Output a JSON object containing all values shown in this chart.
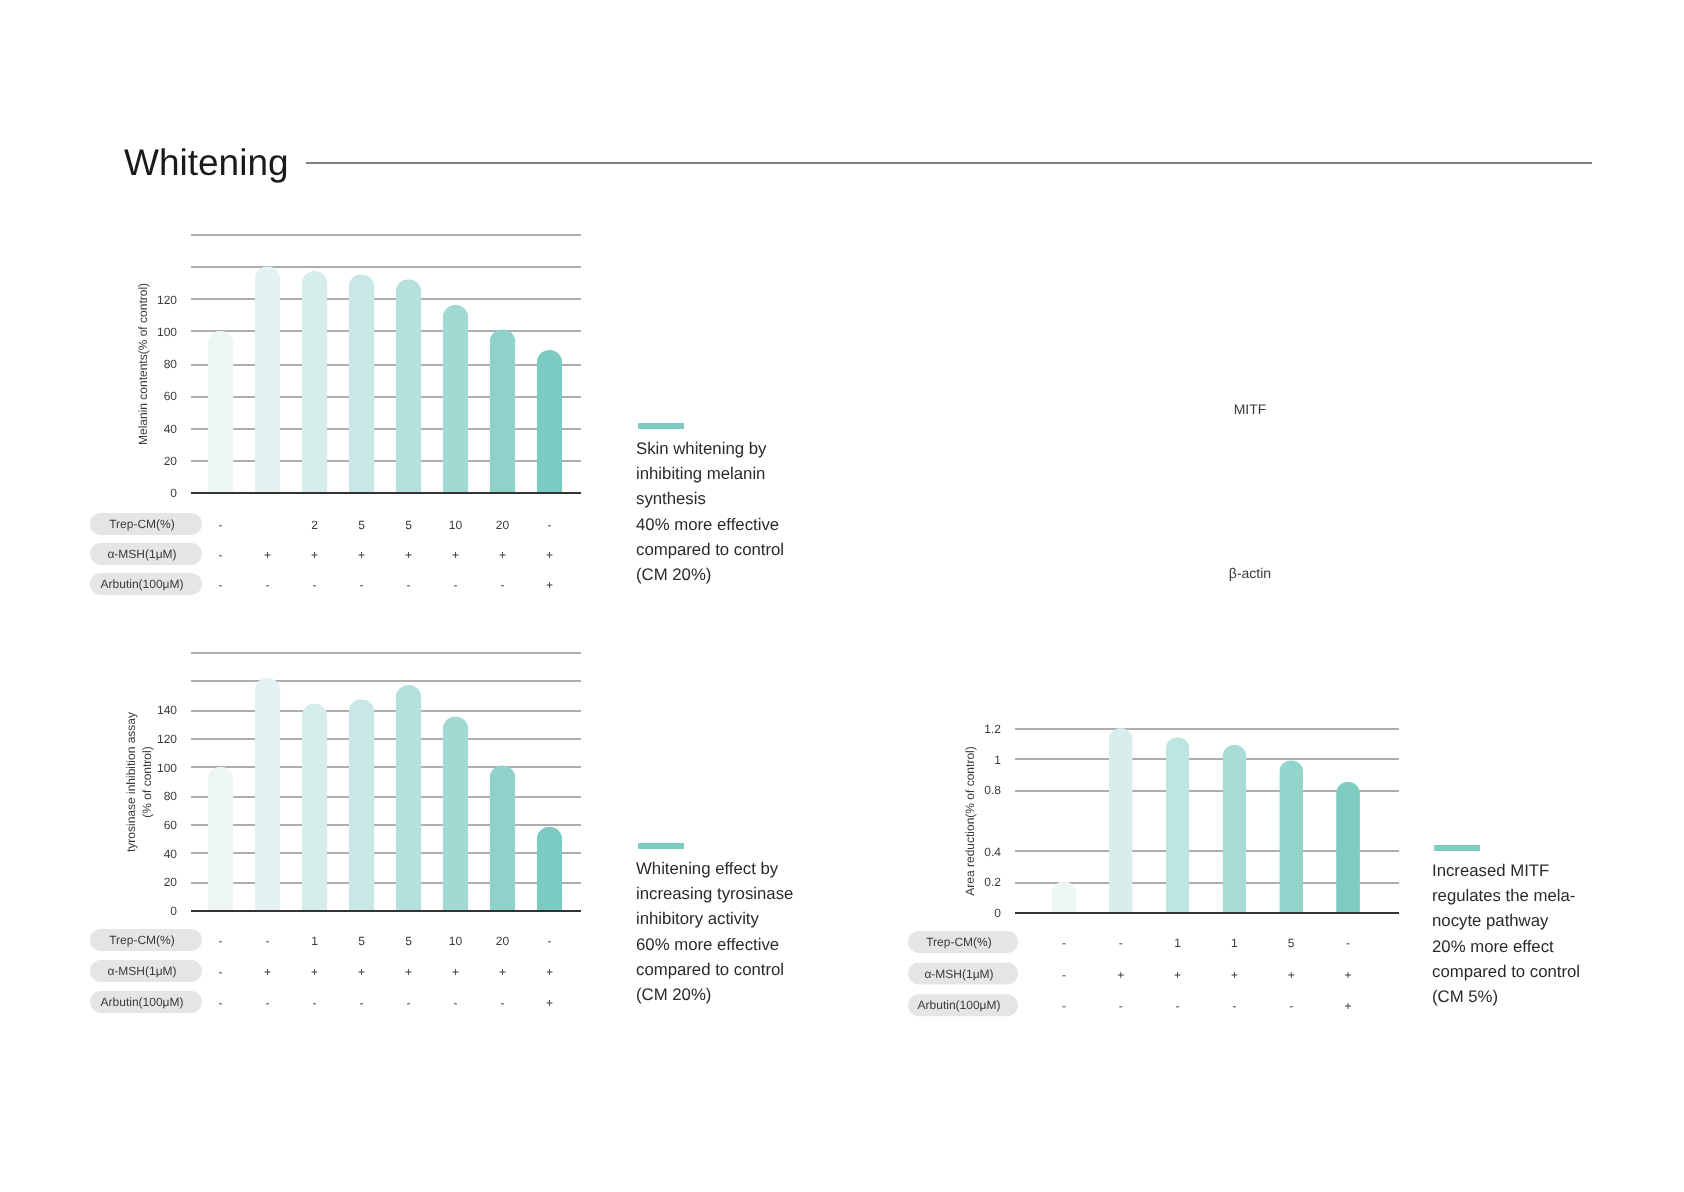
{
  "chart_data": [
    {
      "type": "other",
      "title": "Whitening"
    },
    {
      "type": "bar",
      "ylabel": "Melanin contents(% of control)",
      "xlabel": "Trep-CM(%)\nα-MSH(1μM)\nArbutin(100μM)",
      "categories": [
        "-\n-\n-",
        "\n+\n-",
        "2\n+\n-",
        "5\n+\n-",
        "5\n+\n-",
        "10\n+\n-",
        "20\n+\n-",
        "-\n+\n+"
      ],
      "values": [
        100,
        140,
        137,
        135,
        132,
        116,
        101,
        88
      ],
      "colors": [
        "#eef6f5",
        "#e4f2f1",
        "#d6eeeb",
        "#c7e8e4",
        "#b5e1dc",
        "#a2dad3",
        "#8ed2ca",
        "#7ccbc2"
      ],
      "ylim": [
        0,
        160
      ],
      "yticks": [
        0,
        20,
        40,
        60,
        80,
        100,
        120,
        {
          "value": 140,
          "label": null
        },
        {
          "value": 160,
          "label": null
        }
      ],
      "grid": "y",
      "annotations": [
        "Skin whitening by\ninhibiting melanin\nsynthesis\n40% more effective\ncompared to control\n(CM 20%)"
      ]
    },
    {
      "type": "other",
      "annotations": [
        "MITF",
        "β-actin"
      ]
    },
    {
      "type": "bar",
      "ylabel": "tyrosinase inhibition assay\n(% of control)",
      "xlabel": "Trep-CM(%)\nα-MSH(1μM)\nArbutin(100μM)",
      "categories": [
        "-\n-\n-",
        "-\n+\n-",
        "1\n+\n-",
        "5\n+\n-",
        "5\n+\n-",
        "10\n+\n-",
        "20\n+\n-",
        "-\n+\n+"
      ],
      "values": [
        100,
        162,
        144,
        147,
        157,
        135,
        101,
        58
      ],
      "colors": [
        "#eef6f5",
        "#e4f2f1",
        "#d6eeeb",
        "#c7e8e4",
        "#b5e1dc",
        "#a2dad3",
        "#8ed2ca",
        "#7ccbc2"
      ],
      "ylim": [
        0,
        180
      ],
      "yticks": [
        0,
        20,
        40,
        60,
        80,
        100,
        120,
        140,
        {
          "value": 160,
          "label": null
        },
        {
          "value": 180,
          "label": null
        }
      ],
      "grid": "y",
      "annotations": [
        "Whitening effect by\nincreasing tyrosinase\ninhibitory activity\n60% more effective\ncompared to control\n(CM 20%)"
      ]
    },
    {
      "type": "bar",
      "ylabel": "Area reduction(% of control)",
      "xlabel": "Trep-CM(%)\nα-MSH(1μM)\nArbutin(100μM)",
      "categories": [
        "-\n-\n-",
        "-\n+\n-",
        "1\n+\n-",
        "1\n+\n-",
        "5\n+\n-",
        "-\n+\n+"
      ],
      "values": [
        0.2,
        1.2,
        1.14,
        1.09,
        0.99,
        0.85
      ],
      "colors": [
        "#eef6f6",
        "#d7eeec",
        "#bfe5e1",
        "#a8ddd7",
        "#93d4cc",
        "#7ecbc2"
      ],
      "ylim": [
        0,
        1.2
      ],
      "yticks": [
        0,
        0.2,
        0.4,
        0.8,
        1,
        1.2
      ],
      "grid": "y",
      "annotations": [
        "Increased MITF\nregulates the mela-\nnocyte pathway\n20% more effect\ncompared to control\n(CM 5%)"
      ]
    }
  ]
}
